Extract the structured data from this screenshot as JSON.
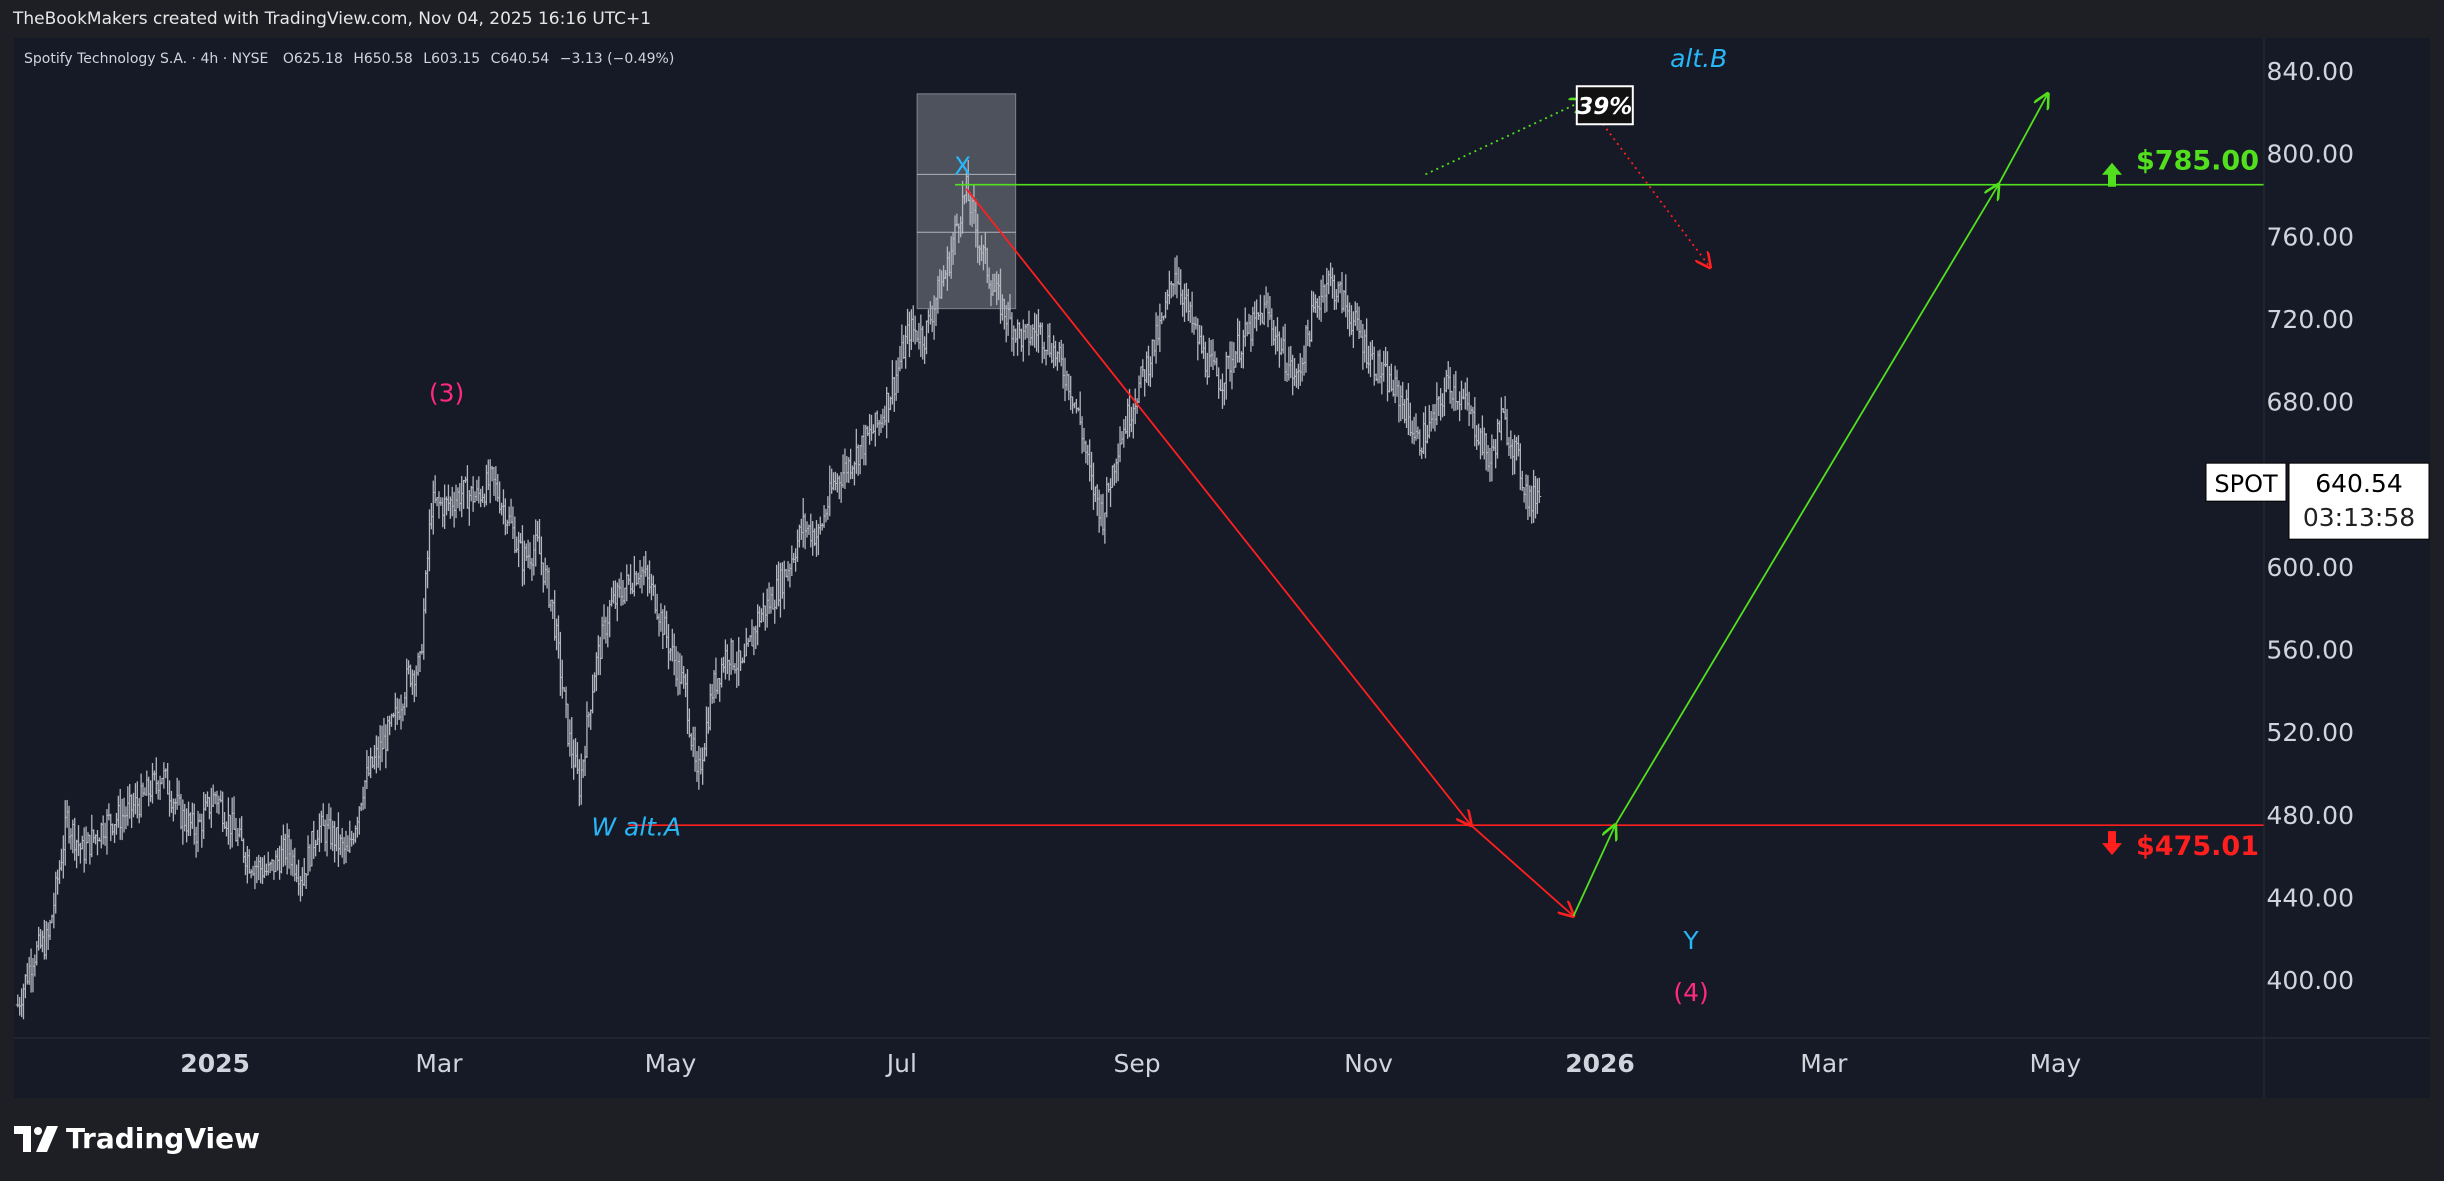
{
  "page": {
    "credit": "TheBookMakers created with TradingView.com, Nov 04, 2025 16:16 UTC+1",
    "logo_text": "TradingView"
  },
  "colors": {
    "bullish": "#52e01e",
    "bearish": "#ff1f1f",
    "wave_label": "#29b6f6",
    "degree_label": "#ff2a80",
    "price_bar": "#b2b5be",
    "box_fill": "#9aa0aa"
  },
  "chart_data": {
    "type": "line",
    "symbol": "Spotify Technology S.A. · 4h · NYSE",
    "ohlc_legend": {
      "o_label": "O",
      "o_value": "625.18",
      "h_label": "H",
      "h_value": "650.58",
      "l_label": "L",
      "l_value": "603.15",
      "c_label": "C",
      "c_value": "640.54",
      "change": "−3.13 (−0.49%)"
    },
    "y_axis": {
      "ylim": [
        372,
        856
      ],
      "ticks": [
        400,
        440,
        480,
        520,
        560,
        600,
        640,
        680,
        720,
        760,
        800,
        840
      ],
      "tick_labels": [
        "400.00",
        "440.00",
        "480.00",
        "520.00",
        "560.00",
        "600.00",
        "680.00",
        "720.00",
        "760.00",
        "800.00",
        "840.00"
      ]
    },
    "x_axis": {
      "xlim": [
        "2024-11-09",
        "2026-06-25"
      ],
      "ticks": [
        {
          "date": "2025-01-01",
          "label": "2025",
          "bold": true
        },
        {
          "date": "2025-03-01",
          "label": "Mar",
          "bold": false
        },
        {
          "date": "2025-05-01",
          "label": "May",
          "bold": false
        },
        {
          "date": "2025-07-01",
          "label": "Jul",
          "bold": false
        },
        {
          "date": "2025-09-01",
          "label": "Sep",
          "bold": false
        },
        {
          "date": "2025-11-01",
          "label": "Nov",
          "bold": false
        },
        {
          "date": "2026-01-01",
          "label": "2026",
          "bold": true
        },
        {
          "date": "2026-03-01",
          "label": "Mar",
          "bold": false
        },
        {
          "date": "2026-05-01",
          "label": "May",
          "bold": false
        }
      ]
    },
    "price_series": {
      "name": "SPOT",
      "points": [
        [
          "2024-11-10",
          388
        ],
        [
          "2024-11-14",
          412
        ],
        [
          "2024-11-18",
          420
        ],
        [
          "2024-11-23",
          478
        ],
        [
          "2024-11-27",
          462
        ],
        [
          "2024-12-03",
          476
        ],
        [
          "2024-12-08",
          480
        ],
        [
          "2024-12-13",
          488
        ],
        [
          "2024-12-18",
          500
        ],
        [
          "2024-12-23",
          480
        ],
        [
          "2024-12-27",
          472
        ],
        [
          "2025-01-01",
          490
        ],
        [
          "2025-01-06",
          472
        ],
        [
          "2025-01-10",
          458
        ],
        [
          "2025-01-15",
          452
        ],
        [
          "2025-01-20",
          464
        ],
        [
          "2025-01-24",
          450
        ],
        [
          "2025-01-28",
          474
        ],
        [
          "2025-02-01",
          470
        ],
        [
          "2025-02-05",
          460
        ],
        [
          "2025-02-09",
          494
        ],
        [
          "2025-02-13",
          510
        ],
        [
          "2025-02-17",
          524
        ],
        [
          "2025-02-21",
          548
        ],
        [
          "2025-02-24",
          552
        ],
        [
          "2025-02-27",
          630
        ],
        [
          "2025-03-03",
          630
        ],
        [
          "2025-03-07",
          636
        ],
        [
          "2025-03-11",
          634
        ],
        [
          "2025-03-15",
          642
        ],
        [
          "2025-03-19",
          625
        ],
        [
          "2025-03-23",
          604
        ],
        [
          "2025-03-27",
          610
        ],
        [
          "2025-03-31",
          580
        ],
        [
          "2025-04-04",
          520
        ],
        [
          "2025-04-07",
          494
        ],
        [
          "2025-04-11",
          550
        ],
        [
          "2025-04-15",
          580
        ],
        [
          "2025-04-19",
          590
        ],
        [
          "2025-04-23",
          600
        ],
        [
          "2025-04-27",
          585
        ],
        [
          "2025-05-01",
          560
        ],
        [
          "2025-05-05",
          540
        ],
        [
          "2025-05-08",
          495
        ],
        [
          "2025-05-12",
          540
        ],
        [
          "2025-05-16",
          560
        ],
        [
          "2025-05-20",
          550
        ],
        [
          "2025-05-24",
          575
        ],
        [
          "2025-05-28",
          585
        ],
        [
          "2025-06-01",
          600
        ],
        [
          "2025-06-05",
          620
        ],
        [
          "2025-06-09",
          615
        ],
        [
          "2025-06-13",
          640
        ],
        [
          "2025-06-17",
          650
        ],
        [
          "2025-06-21",
          660
        ],
        [
          "2025-06-25",
          670
        ],
        [
          "2025-06-29",
          690
        ],
        [
          "2025-07-03",
          715
        ],
        [
          "2025-07-07",
          712
        ],
        [
          "2025-07-10",
          730
        ],
        [
          "2025-07-13",
          745
        ],
        [
          "2025-07-16",
          770
        ],
        [
          "2025-07-18",
          782
        ],
        [
          "2025-07-21",
          760
        ],
        [
          "2025-07-25",
          735
        ],
        [
          "2025-07-29",
          720
        ],
        [
          "2025-08-02",
          710
        ],
        [
          "2025-08-06",
          715
        ],
        [
          "2025-08-10",
          705
        ],
        [
          "2025-08-14",
          690
        ],
        [
          "2025-08-17",
          670
        ],
        [
          "2025-08-20",
          640
        ],
        [
          "2025-08-23",
          625
        ],
        [
          "2025-08-27",
          660
        ],
        [
          "2025-08-31",
          680
        ],
        [
          "2025-09-04",
          700
        ],
        [
          "2025-09-08",
          720
        ],
        [
          "2025-09-11",
          745
        ],
        [
          "2025-09-15",
          720
        ],
        [
          "2025-09-19",
          700
        ],
        [
          "2025-09-23",
          690
        ],
        [
          "2025-09-27",
          705
        ],
        [
          "2025-10-01",
          715
        ],
        [
          "2025-10-05",
          725
        ],
        [
          "2025-10-09",
          705
        ],
        [
          "2025-10-13",
          690
        ],
        [
          "2025-10-17",
          720
        ],
        [
          "2025-10-21",
          740
        ],
        [
          "2025-10-25",
          730
        ],
        [
          "2025-10-29",
          715
        ],
        [
          "2025-11-02",
          700
        ],
        [
          "2025-11-06",
          690
        ],
        [
          "2025-11-10",
          680
        ],
        [
          "2025-11-14",
          660
        ],
        [
          "2025-11-18",
          670
        ],
        [
          "2025-11-22",
          690
        ],
        [
          "2025-11-26",
          680
        ],
        [
          "2025-11-30",
          665
        ],
        [
          "2025-12-03",
          650
        ],
        [
          "2025-12-06",
          672
        ],
        [
          "2025-12-09",
          660
        ],
        [
          "2025-12-12",
          640
        ],
        [
          "2025-12-14",
          630
        ],
        [
          "2025-12-16",
          640
        ]
      ]
    },
    "annotations": {
      "resistance_label": "$785.00",
      "resistance_value": 785,
      "support_label": "$475.01",
      "support_value": 475.01,
      "last_price_symbol": "SPOT",
      "last_price_value": "640.54",
      "last_price_countdown": "03:13:58",
      "last_price": 640.54,
      "wave_labels": [
        {
          "text": "(3)",
          "date": "2025-03-03",
          "price": 680,
          "kind": "degree"
        },
        {
          "text": "X",
          "date": "2025-07-17",
          "price": 790,
          "kind": "wave"
        },
        {
          "text": "W alt.A",
          "date": "2025-04-22",
          "price": 470,
          "kind": "wave"
        },
        {
          "text": "Y",
          "date": "2026-01-25",
          "price": 415,
          "kind": "wave"
        },
        {
          "text": "(4)",
          "date": "2026-01-25",
          "price": 390,
          "kind": "degree"
        },
        {
          "text": "alt.B",
          "date": "2026-01-27",
          "price": 842,
          "kind": "wave"
        }
      ],
      "percent_box": {
        "text": "39%",
        "date": "2026-01-02",
        "price": 822
      },
      "zone_box": {
        "x0": "2025-07-05",
        "x1": "2025-07-31",
        "y_top": 829,
        "y_bottom": 725,
        "y_lines": [
          790,
          762
        ]
      },
      "bearish_arrow_1": [
        [
          "2025-07-18",
          783
        ],
        [
          "2025-11-28",
          475
        ]
      ],
      "bearish_arrow_2": [
        [
          "2025-11-28",
          475
        ],
        [
          "2025-12-25",
          431
        ]
      ],
      "bullish_arrow_1": [
        [
          "2025-12-25",
          431
        ],
        [
          "2026-01-05",
          475
        ]
      ],
      "bullish_arrow_2": [
        [
          "2026-01-05",
          475
        ],
        [
          "2026-04-16",
          785
        ]
      ],
      "bullish_arrow_3": [
        [
          "2026-04-16",
          785
        ],
        [
          "2026-04-29",
          829
        ]
      ],
      "alt_b_dotted_up": [
        [
          "2025-11-16",
          790
        ],
        [
          "2025-12-28",
          826
        ]
      ],
      "alt_b_dotted_down": [
        [
          "2025-12-28",
          826
        ],
        [
          "2026-01-30",
          745
        ]
      ]
    }
  }
}
